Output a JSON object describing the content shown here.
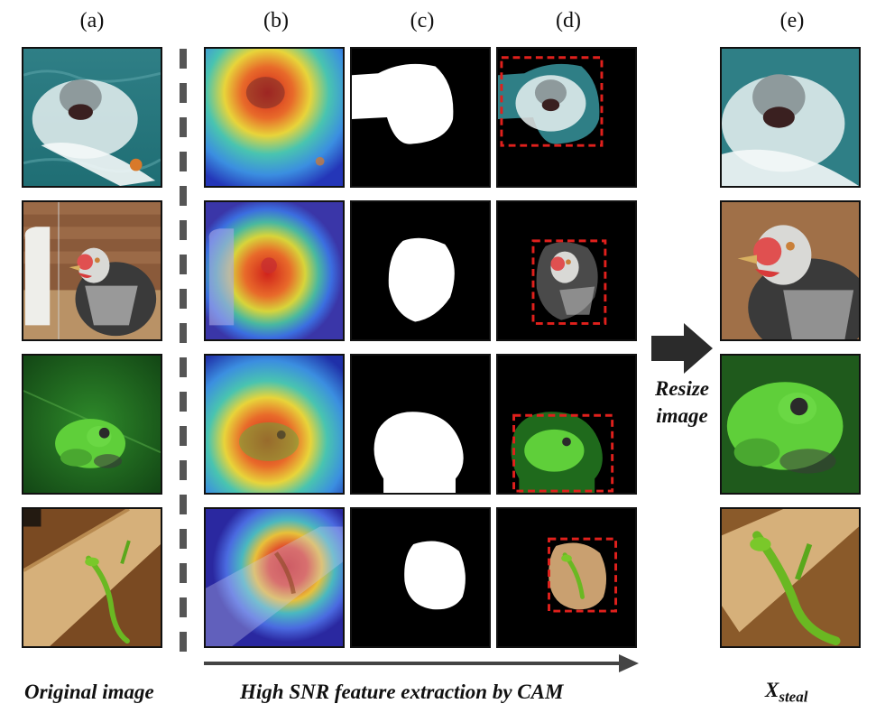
{
  "column_labels": [
    "(a)",
    "(b)",
    "(c)",
    "(d)",
    "(e)"
  ],
  "resize_label_line1": "Resize",
  "resize_label_line2": "image",
  "caption_original": "Original image",
  "caption_extraction": "High SNR feature extraction by CAM",
  "caption_steal_main": "X",
  "caption_steal_sub": "steal",
  "colors": {
    "mask_bg": "#000000",
    "mask_fg": "#ffffff",
    "bbox": "#e0201c",
    "arrow": "#2b2b2b",
    "dash": "#555555"
  },
  "rows": [
    "shark",
    "hen",
    "frog",
    "lizard"
  ]
}
